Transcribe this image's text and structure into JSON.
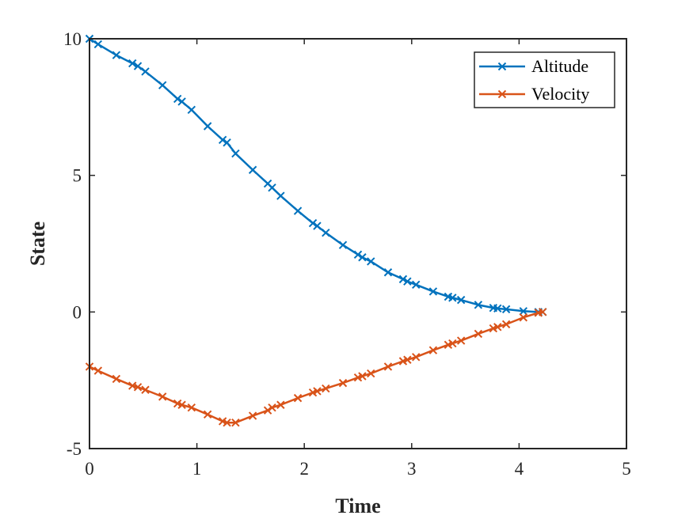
{
  "chart_data": {
    "type": "line",
    "title": "",
    "xlabel": "Time",
    "ylabel": "State",
    "xlim": [
      0,
      5
    ],
    "ylim": [
      -5,
      10
    ],
    "xticks": [
      0,
      1,
      2,
      3,
      4,
      5
    ],
    "yticks": [
      -5,
      0,
      5,
      10
    ],
    "xtick_labels": [
      "0",
      "1",
      "2",
      "3",
      "4",
      "5"
    ],
    "ytick_labels": [
      "-5",
      "0",
      "5",
      "10"
    ],
    "legend_position": "top-right",
    "grid": false,
    "series": [
      {
        "name": "Altitude",
        "color": "#0072BD",
        "marker": "x",
        "x": [
          0,
          0.08,
          0.25,
          0.4,
          0.45,
          0.52,
          0.68,
          0.82,
          0.86,
          0.95,
          1.1,
          1.24,
          1.28,
          1.36,
          1.52,
          1.66,
          1.7,
          1.78,
          1.94,
          2.08,
          2.12,
          2.2,
          2.36,
          2.5,
          2.54,
          2.62,
          2.78,
          2.92,
          2.96,
          3.04,
          3.2,
          3.34,
          3.38,
          3.46,
          3.62,
          3.76,
          3.8,
          3.88,
          4.04,
          4.18,
          4.22
        ],
        "y": [
          10,
          9.8,
          9.4,
          9.1,
          9.0,
          8.8,
          8.3,
          7.8,
          7.7,
          7.4,
          6.8,
          6.3,
          6.2,
          5.8,
          5.2,
          4.7,
          4.55,
          4.25,
          3.7,
          3.25,
          3.15,
          2.9,
          2.45,
          2.1,
          2.0,
          1.85,
          1.45,
          1.2,
          1.12,
          1.0,
          0.75,
          0.56,
          0.52,
          0.44,
          0.26,
          0.15,
          0.13,
          0.1,
          0.03,
          0.0,
          0.0
        ]
      },
      {
        "name": "Velocity",
        "color": "#D95319",
        "marker": "x",
        "x": [
          0,
          0.08,
          0.25,
          0.4,
          0.45,
          0.52,
          0.68,
          0.82,
          0.86,
          0.95,
          1.1,
          1.24,
          1.28,
          1.36,
          1.52,
          1.66,
          1.7,
          1.78,
          1.94,
          2.08,
          2.12,
          2.2,
          2.36,
          2.5,
          2.54,
          2.62,
          2.78,
          2.92,
          2.96,
          3.04,
          3.2,
          3.34,
          3.38,
          3.46,
          3.62,
          3.76,
          3.8,
          3.88,
          4.04,
          4.18,
          4.22
        ],
        "y": [
          -2.0,
          -2.15,
          -2.45,
          -2.7,
          -2.75,
          -2.85,
          -3.1,
          -3.35,
          -3.4,
          -3.5,
          -3.75,
          -4.0,
          -4.05,
          -4.05,
          -3.8,
          -3.6,
          -3.5,
          -3.4,
          -3.15,
          -2.95,
          -2.9,
          -2.8,
          -2.6,
          -2.4,
          -2.35,
          -2.25,
          -2.0,
          -1.8,
          -1.75,
          -1.65,
          -1.4,
          -1.2,
          -1.15,
          -1.05,
          -0.8,
          -0.6,
          -0.55,
          -0.45,
          -0.2,
          -0.03,
          0.0
        ]
      }
    ]
  }
}
